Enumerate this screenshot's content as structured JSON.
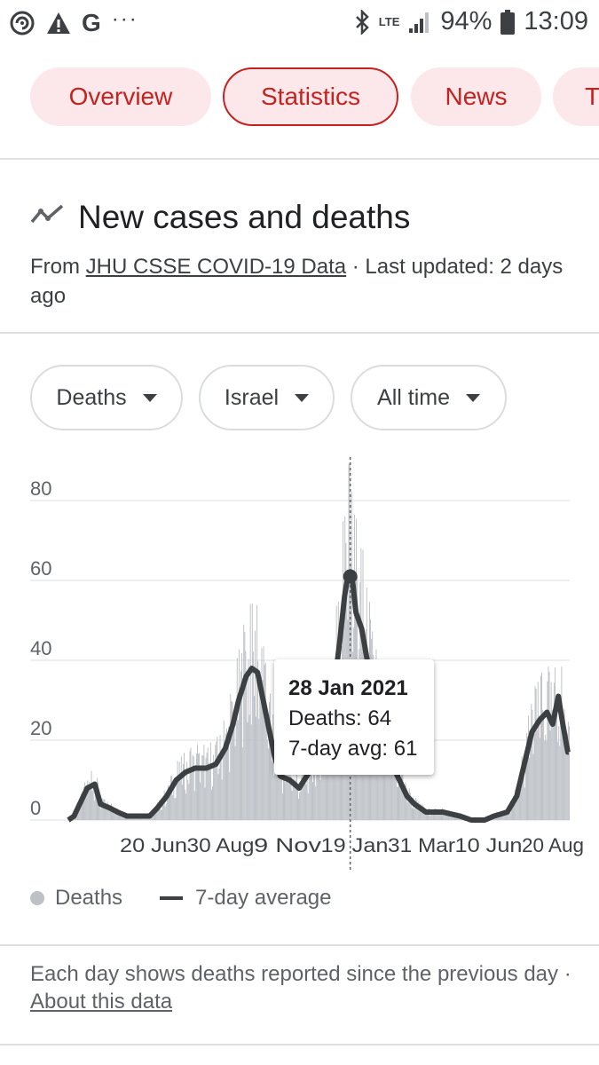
{
  "status_bar": {
    "left_icons": [
      "sync-icon",
      "warning-icon",
      "google-icon",
      "more-notifications-icon"
    ],
    "google_letter": "G",
    "more_dots": "···",
    "network": "LTE",
    "battery": "94%",
    "time": "13:09"
  },
  "tabs": [
    {
      "label": "Overview",
      "active": false
    },
    {
      "label": "Statistics",
      "active": true
    },
    {
      "label": "News",
      "active": false
    },
    {
      "label": "T",
      "active": false
    }
  ],
  "header": {
    "title": "New cases and deaths",
    "source_prefix": "From ",
    "source_link": "JHU CSSE COVID-19 Data",
    "source_suffix": " · Last updated: 2 days ago"
  },
  "filters": {
    "metric": "Deaths",
    "region": "Israel",
    "range": "All time"
  },
  "chart_data": {
    "type": "bar",
    "y_ticks": [
      "80",
      "60",
      "40",
      "20",
      "0"
    ],
    "ylim": [
      0,
      90
    ],
    "x_tick_labels": [
      "20 Jun",
      "30 Aug",
      "9 Nov",
      "19 Jan",
      "31 Mar",
      "10 Jun",
      "20 Aug"
    ],
    "series": [
      {
        "name": "Deaths",
        "kind": "bars",
        "color": "#bdc1c6"
      },
      {
        "name": "7-day average",
        "kind": "line",
        "color": "#3c4043"
      }
    ],
    "seven_day_average_anchors": [
      [
        0,
        0
      ],
      [
        6,
        1
      ],
      [
        14,
        5
      ],
      [
        20,
        8
      ],
      [
        28,
        9
      ],
      [
        34,
        4
      ],
      [
        44,
        3
      ],
      [
        52,
        2
      ],
      [
        62,
        1
      ],
      [
        74,
        1
      ],
      [
        86,
        1
      ],
      [
        94,
        3
      ],
      [
        104,
        6
      ],
      [
        114,
        10
      ],
      [
        124,
        12
      ],
      [
        134,
        13
      ],
      [
        146,
        13
      ],
      [
        156,
        14
      ],
      [
        166,
        18
      ],
      [
        174,
        24
      ],
      [
        180,
        30
      ],
      [
        188,
        36
      ],
      [
        194,
        38
      ],
      [
        200,
        37
      ],
      [
        206,
        30
      ],
      [
        212,
        23
      ],
      [
        218,
        16
      ],
      [
        224,
        11
      ],
      [
        234,
        10
      ],
      [
        244,
        8
      ],
      [
        252,
        11
      ],
      [
        260,
        14
      ],
      [
        268,
        19
      ],
      [
        276,
        26
      ],
      [
        282,
        35
      ],
      [
        287,
        45
      ],
      [
        292,
        56
      ],
      [
        296,
        62
      ],
      [
        300,
        61
      ],
      [
        304,
        52
      ],
      [
        310,
        48
      ],
      [
        316,
        40
      ],
      [
        322,
        33
      ],
      [
        328,
        26
      ],
      [
        336,
        20
      ],
      [
        342,
        14
      ],
      [
        350,
        10
      ],
      [
        358,
        6
      ],
      [
        366,
        4
      ],
      [
        378,
        2
      ],
      [
        396,
        2
      ],
      [
        414,
        1
      ],
      [
        426,
        0
      ],
      [
        440,
        0
      ],
      [
        450,
        1
      ],
      [
        464,
        2
      ],
      [
        474,
        6
      ],
      [
        482,
        14
      ],
      [
        490,
        22
      ],
      [
        498,
        25
      ],
      [
        506,
        27
      ],
      [
        512,
        24
      ],
      [
        518,
        31
      ],
      [
        522,
        25
      ],
      [
        528,
        17
      ]
    ],
    "highlight": {
      "index": 298,
      "value": 64,
      "avg": 61
    },
    "tooltip": {
      "date": "28 Jan 2021",
      "deaths_label": "Deaths: 64",
      "avg_label": "7-day avg: 61"
    }
  },
  "legend": {
    "bars": "Deaths",
    "line": "7-day average"
  },
  "footer": {
    "note": "Each day shows deaths reported since the previous day",
    "separator": " · ",
    "link": "About this data"
  }
}
